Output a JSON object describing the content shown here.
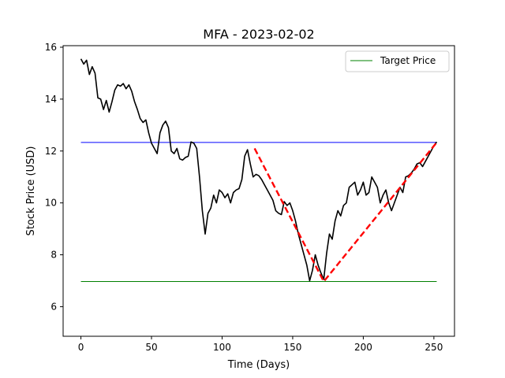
{
  "chart_data": {
    "type": "line",
    "title": "MFA - 2023-02-02",
    "xlabel": "Time (Days)",
    "ylabel": "Stock Price (USD)",
    "xlim": [
      -12.6,
      264.6
    ],
    "ylim": [
      4.86,
      16.06
    ],
    "xticks": [
      0,
      50,
      100,
      150,
      200,
      250
    ],
    "yticks": [
      6,
      8,
      10,
      12,
      14,
      16
    ],
    "grid": false,
    "legend_position": "top-right",
    "colors": {
      "price": "#000000",
      "resistance": "#0000ff",
      "target": "#008000",
      "pattern": "#ff0000"
    },
    "series": [
      {
        "role": "price",
        "x": [
          0,
          2,
          4,
          6,
          8,
          10,
          12,
          14,
          16,
          18,
          20,
          22,
          24,
          26,
          28,
          30,
          32,
          34,
          36,
          38,
          40,
          42,
          44,
          46,
          48,
          50,
          52,
          54,
          56,
          58,
          60,
          62,
          64,
          66,
          68,
          70,
          72,
          74,
          76,
          78,
          80,
          82,
          84,
          86,
          88,
          90,
          92,
          94,
          96,
          98,
          100,
          102,
          104,
          106,
          108,
          110,
          112,
          114,
          116,
          118,
          120,
          122,
          124,
          126,
          128,
          130,
          132,
          134,
          136,
          138,
          140,
          142,
          144,
          146,
          148,
          150,
          152,
          154,
          156,
          158,
          160,
          162,
          164,
          166,
          168,
          170,
          172,
          174,
          176,
          178,
          180,
          182,
          184,
          186,
          188,
          190,
          192,
          194,
          196,
          198,
          200,
          202,
          204,
          206,
          208,
          210,
          212,
          214,
          216,
          218,
          220,
          222,
          224,
          226,
          228,
          230,
          232,
          234,
          236,
          238,
          240,
          242,
          244,
          246,
          248,
          250,
          252
        ],
        "values": [
          15.55,
          15.35,
          15.5,
          14.95,
          15.25,
          15.0,
          14.05,
          14.0,
          13.6,
          13.95,
          13.5,
          13.9,
          14.35,
          14.55,
          14.5,
          14.6,
          14.4,
          14.55,
          14.3,
          13.9,
          13.6,
          13.25,
          13.1,
          13.2,
          12.7,
          12.3,
          12.1,
          11.9,
          12.7,
          13.0,
          13.15,
          12.9,
          12.0,
          11.9,
          12.1,
          11.7,
          11.65,
          11.75,
          11.8,
          12.35,
          12.3,
          12.1,
          11.0,
          9.7,
          8.8,
          9.6,
          9.8,
          10.3,
          10.0,
          10.5,
          10.4,
          10.2,
          10.35,
          10.0,
          10.4,
          10.5,
          10.55,
          10.9,
          11.8,
          12.05,
          11.5,
          11.0,
          11.1,
          11.05,
          10.9,
          10.7,
          10.5,
          10.3,
          10.1,
          9.7,
          9.6,
          9.55,
          10.05,
          9.9,
          10.0,
          9.7,
          9.3,
          8.8,
          8.4,
          8.0,
          7.6,
          7.0,
          7.4,
          8.0,
          7.6,
          7.3,
          7.05,
          8.05,
          8.8,
          8.6,
          9.3,
          9.7,
          9.5,
          9.9,
          10.0,
          10.6,
          10.7,
          10.8,
          10.3,
          10.5,
          10.8,
          10.3,
          10.4,
          11.0,
          10.8,
          10.6,
          10.0,
          10.3,
          10.5,
          10.0,
          9.7,
          10.0,
          10.3,
          10.6,
          10.4,
          11.0,
          11.05,
          11.15,
          11.3,
          11.5,
          11.55,
          11.4,
          11.6,
          11.8,
          12.0,
          12.2,
          12.35
        ]
      },
      {
        "role": "resistance",
        "x": [
          0,
          252
        ],
        "values": [
          12.33,
          12.33
        ]
      },
      {
        "name": "Target Price",
        "role": "target",
        "x": [
          0,
          252
        ],
        "values": [
          6.97,
          6.97
        ]
      },
      {
        "role": "pattern",
        "x": [
          123,
          172,
          252
        ],
        "values": [
          12.1,
          6.97,
          12.33
        ]
      }
    ]
  }
}
